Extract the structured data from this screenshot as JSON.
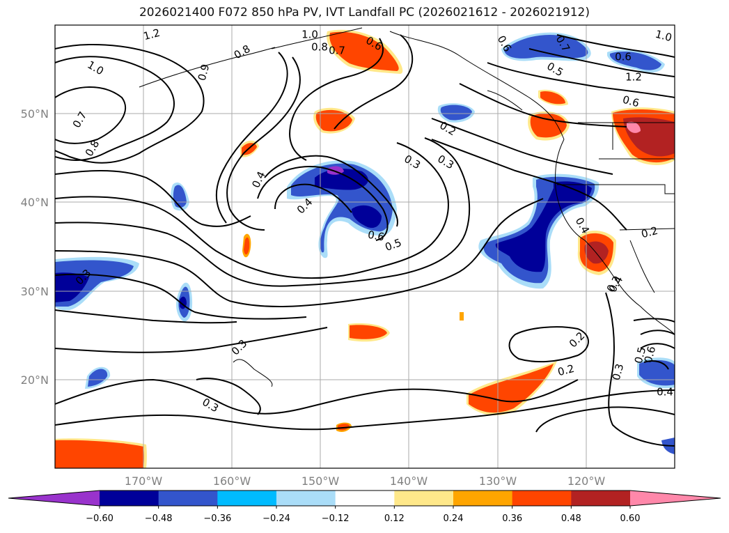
{
  "title": "2026021400 F072 850 hPa PV, IVT Landfall PC (2026021612 - 2026021912)",
  "lat_ticks": [
    "50°N",
    "40°N",
    "30°N",
    "20°N"
  ],
  "lon_ticks": [
    "170°W",
    "160°W",
    "150°W",
    "140°W",
    "130°W",
    "120°W"
  ],
  "colorbar": {
    "colors": [
      "#9933cc",
      "#000099",
      "#3355cc",
      "#00bbff",
      "#aaddf8",
      "#ffffff",
      "#ffe88a",
      "#ffa500",
      "#ff4500",
      "#b22222",
      "#ff88aa"
    ],
    "tick_labels": [
      "−0.60",
      "−0.48",
      "−0.36",
      "−0.24",
      "−0.12",
      "0.12",
      "0.24",
      "0.36",
      "0.48",
      "0.60"
    ]
  },
  "contour_labels": [
    "1.2",
    "1.0",
    "0.8",
    "0.7",
    "0.6",
    "0.6",
    "0.7",
    "0.5",
    "1.0",
    "0.8",
    "0.6",
    "1.2",
    "0.9",
    "1.0",
    "0.7",
    "0.6",
    "0.8",
    "0.2",
    "0.4",
    "0.3",
    "0.4",
    "0.3",
    "0.6",
    "0.5",
    "0.4",
    "0.2",
    "0.4",
    "0.3",
    "0.3",
    "0.3",
    "0.2",
    "0.2",
    "0.3",
    "0.5",
    "0.6",
    "0.4",
    "0.3"
  ]
}
